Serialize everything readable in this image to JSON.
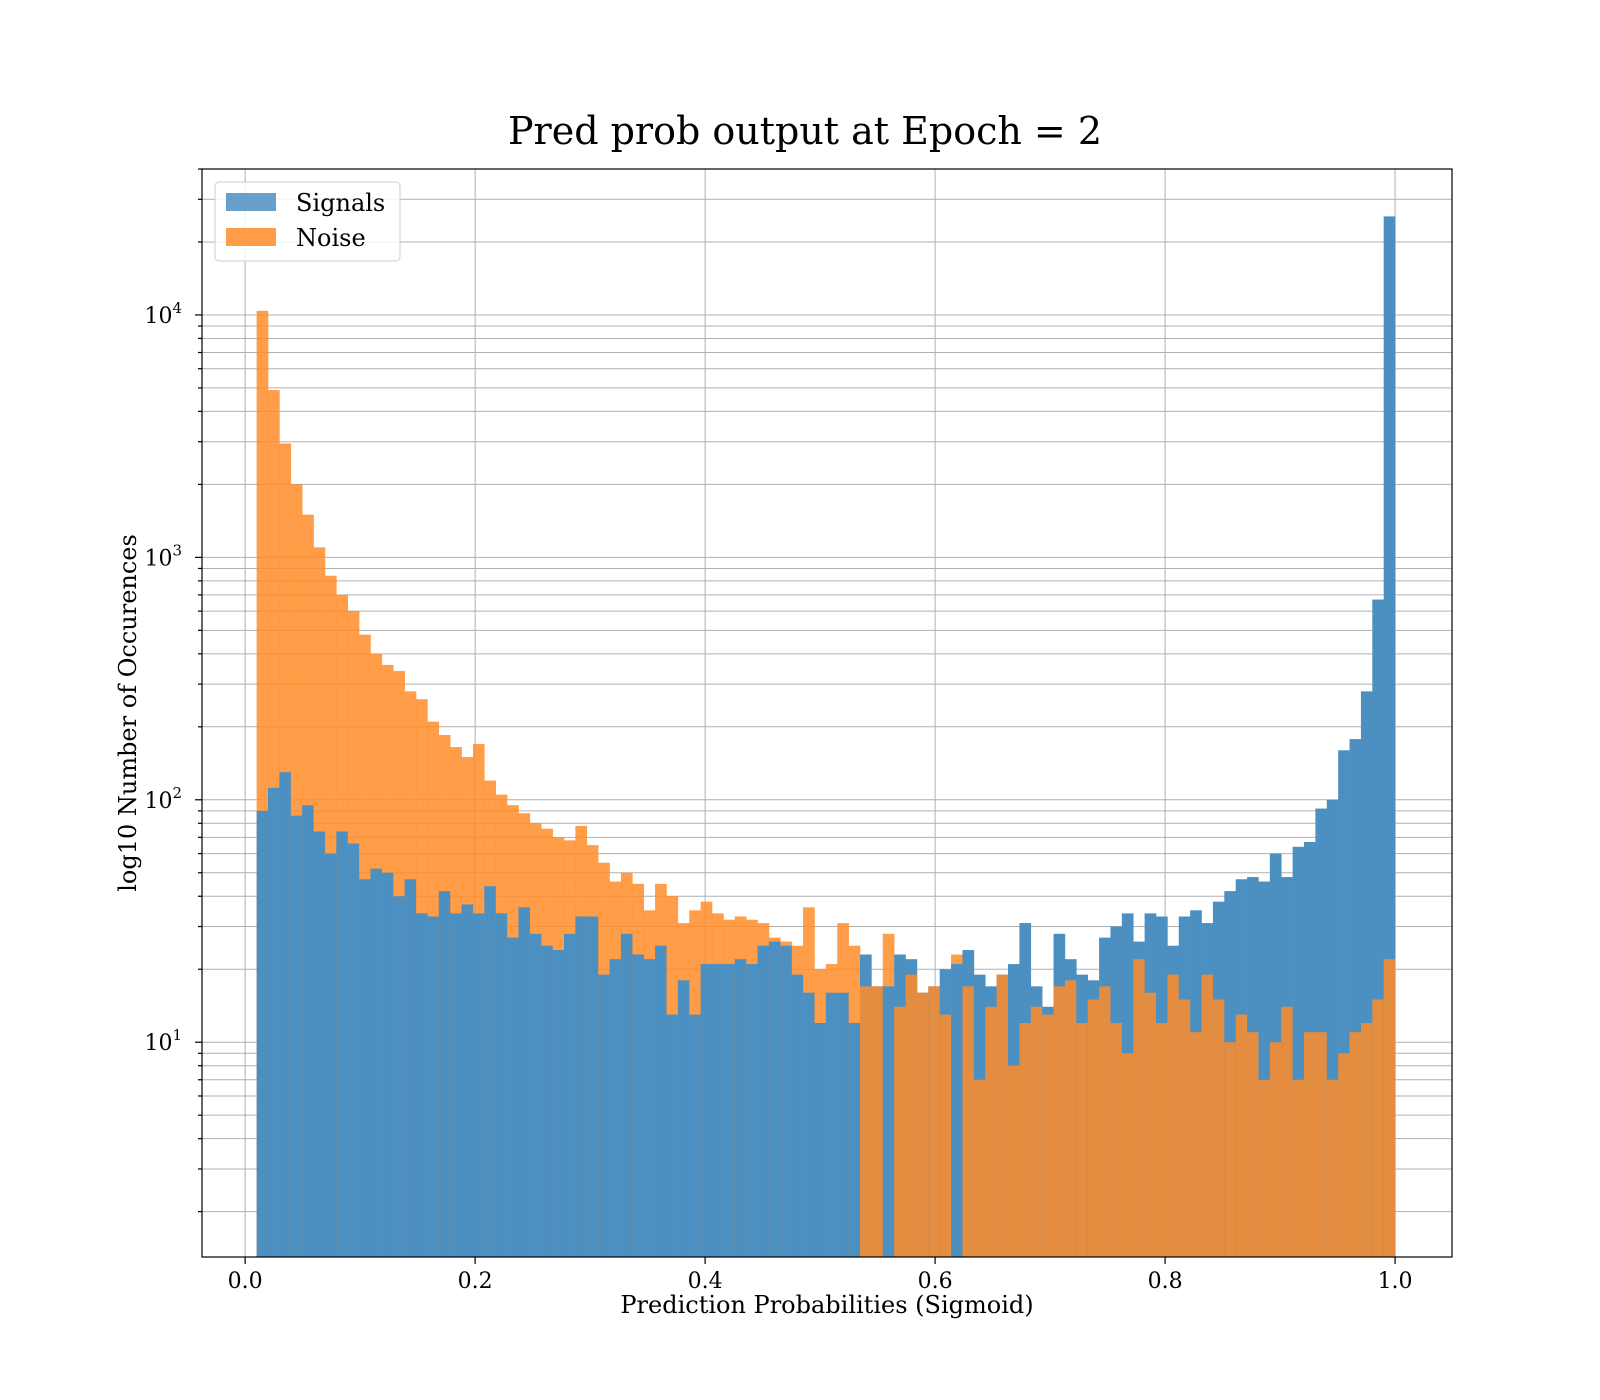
{
  "chart_data": {
    "type": "bar",
    "title": "Pred prob output at Epoch = 2",
    "xlabel": "Prediction Probabilities (Sigmoid)",
    "ylabel": "log10 Number of Occurences",
    "xlim": [
      -0.0375,
      1.0495
    ],
    "ylim": [
      1.3,
      40000
    ],
    "yscale": "log",
    "xticks": [
      "0.0",
      "0.2",
      "0.4",
      "0.6",
      "0.8",
      "1.0"
    ],
    "yticks": [
      {
        "base": "10",
        "exp": "1",
        "value": 10
      },
      {
        "base": "10",
        "exp": "2",
        "value": 100
      },
      {
        "base": "10",
        "exp": "3",
        "value": 1000
      },
      {
        "base": "10",
        "exp": "4",
        "value": 10000
      }
    ],
    "grid": true,
    "legend_position": "upper-left",
    "bin_range": [
      0.01,
      1.0
    ],
    "series": [
      {
        "name": "Signals",
        "color": "#4c8fc1",
        "values": [
          90,
          112,
          130,
          86,
          95,
          74,
          60,
          74,
          66,
          47,
          52,
          50,
          40,
          47,
          34,
          33,
          42,
          34,
          37,
          34,
          44,
          34,
          27,
          36,
          28,
          25,
          24,
          28,
          33,
          33,
          19,
          22,
          28,
          23,
          22,
          25,
          13,
          18,
          13,
          21,
          21,
          21,
          22,
          21,
          25,
          26,
          25,
          19,
          16,
          12,
          16,
          16,
          12,
          23,
          17,
          17,
          23,
          22,
          16,
          17,
          20,
          21,
          24,
          19,
          17,
          19,
          21,
          31,
          17,
          14,
          28,
          22,
          19,
          18,
          27,
          30,
          34,
          26,
          34,
          33,
          25,
          33,
          35,
          31,
          38,
          42,
          47,
          48,
          46,
          60,
          48,
          64,
          67,
          92,
          100,
          160,
          178,
          280,
          670,
          25500
        ]
      },
      {
        "name": "Noise",
        "color": "#ff8c28",
        "values": [
          10400,
          4900,
          2950,
          2000,
          1500,
          1100,
          840,
          700,
          600,
          480,
          400,
          360,
          340,
          280,
          260,
          210,
          185,
          165,
          150,
          170,
          120,
          105,
          95,
          88,
          80,
          76,
          70,
          68,
          78,
          65,
          55,
          46,
          50,
          45,
          35,
          45,
          40,
          31,
          35,
          38,
          34,
          32,
          33,
          32,
          31,
          27,
          26,
          25,
          36,
          20,
          21,
          31,
          25,
          17,
          17,
          28,
          14,
          19,
          16,
          17,
          13,
          23,
          17,
          7,
          14,
          19,
          8,
          12,
          14,
          13,
          17,
          18,
          12,
          15,
          17,
          12,
          9,
          22,
          16,
          12,
          19,
          15,
          11,
          19,
          15,
          10,
          13,
          11,
          7,
          10,
          14,
          7,
          11,
          11,
          7,
          9,
          11,
          12,
          15,
          22
        ]
      }
    ]
  }
}
